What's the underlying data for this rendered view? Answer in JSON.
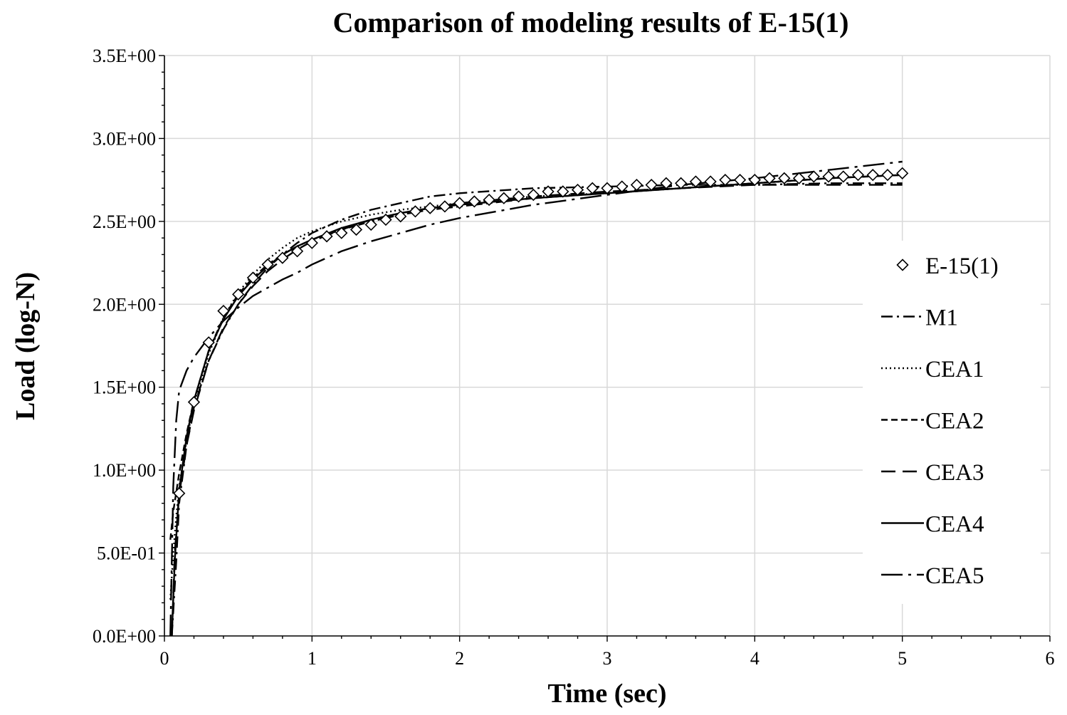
{
  "chart_data": {
    "type": "line",
    "title": "Comparison of modeling results of E-15(1)",
    "xlabel": "Time (sec)",
    "ylabel": "Load (log-N)",
    "xlim": [
      0,
      6
    ],
    "ylim": [
      0,
      3.5
    ],
    "x_ticks": [
      0,
      1,
      2,
      3,
      4,
      5,
      6
    ],
    "x_tick_labels": [
      "0",
      "1",
      "2",
      "3",
      "4",
      "5",
      "6"
    ],
    "y_ticks": [
      0,
      0.5,
      1.0,
      1.5,
      2.0,
      2.5,
      3.0,
      3.5
    ],
    "y_tick_labels": [
      "0.0E+00",
      "5.0E-01",
      "1.0E+00",
      "1.5E+00",
      "2.0E+00",
      "2.5E+00",
      "3.0E+00",
      "3.5E+00"
    ],
    "grid": true,
    "legend_position": "right",
    "series": [
      {
        "name": "E-15(1)",
        "style": "markers",
        "x": [
          0.1,
          0.2,
          0.3,
          0.4,
          0.5,
          0.6,
          0.7,
          0.8,
          0.9,
          1.0,
          1.1,
          1.2,
          1.3,
          1.4,
          1.5,
          1.6,
          1.7,
          1.8,
          1.9,
          2.0,
          2.1,
          2.2,
          2.3,
          2.4,
          2.5,
          2.6,
          2.7,
          2.8,
          2.9,
          3.0,
          3.1,
          3.2,
          3.3,
          3.4,
          3.5,
          3.6,
          3.7,
          3.8,
          3.9,
          4.0,
          4.1,
          4.2,
          4.3,
          4.4,
          4.5,
          4.6,
          4.7,
          4.8,
          4.9,
          5.0
        ],
        "y": [
          0.86,
          1.41,
          1.77,
          1.96,
          2.06,
          2.16,
          2.24,
          2.28,
          2.32,
          2.37,
          2.41,
          2.43,
          2.45,
          2.48,
          2.51,
          2.53,
          2.56,
          2.58,
          2.59,
          2.61,
          2.62,
          2.63,
          2.64,
          2.65,
          2.66,
          2.68,
          2.68,
          2.69,
          2.7,
          2.7,
          2.71,
          2.72,
          2.72,
          2.73,
          2.73,
          2.74,
          2.74,
          2.75,
          2.75,
          2.75,
          2.76,
          2.76,
          2.76,
          2.77,
          2.77,
          2.77,
          2.78,
          2.78,
          2.78,
          2.79
        ]
      },
      {
        "name": "M1",
        "style": "dash-dot",
        "x": [
          0.05,
          0.08,
          0.1,
          0.15,
          0.2,
          0.3,
          0.4,
          0.5,
          0.6,
          0.7,
          0.8,
          0.9,
          1.0,
          1.2,
          1.4,
          1.6,
          1.8,
          2.0,
          2.5,
          3.0,
          3.5,
          4.0,
          4.5,
          5.0
        ],
        "y": [
          0.0,
          0.45,
          0.8,
          1.15,
          1.38,
          1.66,
          1.85,
          2.0,
          2.12,
          2.22,
          2.3,
          2.37,
          2.43,
          2.51,
          2.57,
          2.61,
          2.65,
          2.67,
          2.7,
          2.71,
          2.72,
          2.72,
          2.73,
          2.73
        ]
      },
      {
        "name": "CEA1",
        "style": "dotted",
        "x": [
          0.04,
          0.06,
          0.08,
          0.1,
          0.15,
          0.2,
          0.3,
          0.4,
          0.5,
          0.6,
          0.7,
          0.8,
          0.9,
          1.0,
          1.2,
          1.4,
          1.6,
          1.8,
          2.0,
          2.5,
          3.0,
          3.5,
          4.0,
          4.5,
          5.0
        ],
        "y": [
          0.22,
          0.5,
          0.72,
          0.9,
          1.18,
          1.4,
          1.7,
          1.92,
          2.07,
          2.18,
          2.27,
          2.34,
          2.4,
          2.44,
          2.5,
          2.54,
          2.57,
          2.59,
          2.61,
          2.65,
          2.67,
          2.7,
          2.73,
          2.76,
          2.78
        ]
      },
      {
        "name": "CEA2",
        "style": "short-dash",
        "x": [
          0.04,
          0.06,
          0.1,
          0.15,
          0.2,
          0.3,
          0.4,
          0.5,
          0.6,
          0.7,
          0.8,
          0.9,
          1.0,
          1.2,
          1.4,
          1.6,
          1.8,
          2.0,
          2.5,
          3.0,
          3.5,
          4.0,
          4.5,
          5.0
        ],
        "y": [
          0.58,
          0.75,
          0.98,
          1.22,
          1.42,
          1.72,
          1.92,
          2.06,
          2.16,
          2.24,
          2.3,
          2.35,
          2.39,
          2.45,
          2.5,
          2.54,
          2.57,
          2.59,
          2.64,
          2.67,
          2.7,
          2.73,
          2.76,
          2.78
        ]
      },
      {
        "name": "CEA3",
        "style": "long-dash",
        "x": [
          0.05,
          0.07,
          0.1,
          0.15,
          0.2,
          0.3,
          0.4,
          0.5,
          0.6,
          0.7,
          0.8,
          0.9,
          1.0,
          1.2,
          1.4,
          1.6,
          1.8,
          2.0,
          2.5,
          3.0,
          3.5,
          4.0,
          4.5,
          5.0
        ],
        "y": [
          0.0,
          0.5,
          0.85,
          1.15,
          1.36,
          1.66,
          1.86,
          2.0,
          2.11,
          2.2,
          2.27,
          2.33,
          2.38,
          2.45,
          2.51,
          2.55,
          2.58,
          2.61,
          2.65,
          2.68,
          2.7,
          2.72,
          2.72,
          2.72
        ]
      },
      {
        "name": "CEA4",
        "style": "solid",
        "x": [
          0.05,
          0.07,
          0.1,
          0.15,
          0.2,
          0.3,
          0.4,
          0.5,
          0.6,
          0.7,
          0.8,
          0.9,
          1.0,
          1.2,
          1.4,
          1.6,
          1.8,
          2.0,
          2.5,
          3.0,
          3.5,
          4.0,
          4.5,
          5.0
        ],
        "y": [
          0.0,
          0.45,
          0.88,
          1.2,
          1.42,
          1.72,
          1.91,
          2.05,
          2.15,
          2.23,
          2.3,
          2.35,
          2.39,
          2.46,
          2.51,
          2.55,
          2.58,
          2.6,
          2.64,
          2.67,
          2.7,
          2.73,
          2.76,
          2.78
        ]
      },
      {
        "name": "CEA5",
        "style": "long-dash-dot",
        "x": [
          0.04,
          0.06,
          0.08,
          0.1,
          0.15,
          0.2,
          0.3,
          0.4,
          0.5,
          0.6,
          0.7,
          0.8,
          0.9,
          1.0,
          1.2,
          1.4,
          1.6,
          1.8,
          2.0,
          2.5,
          3.0,
          3.5,
          4.0,
          4.5,
          5.0
        ],
        "y": [
          0.0,
          0.9,
          1.3,
          1.48,
          1.6,
          1.68,
          1.8,
          1.9,
          1.98,
          2.05,
          2.1,
          2.15,
          2.19,
          2.24,
          2.32,
          2.38,
          2.43,
          2.48,
          2.52,
          2.6,
          2.66,
          2.72,
          2.76,
          2.81,
          2.86
        ]
      }
    ]
  }
}
